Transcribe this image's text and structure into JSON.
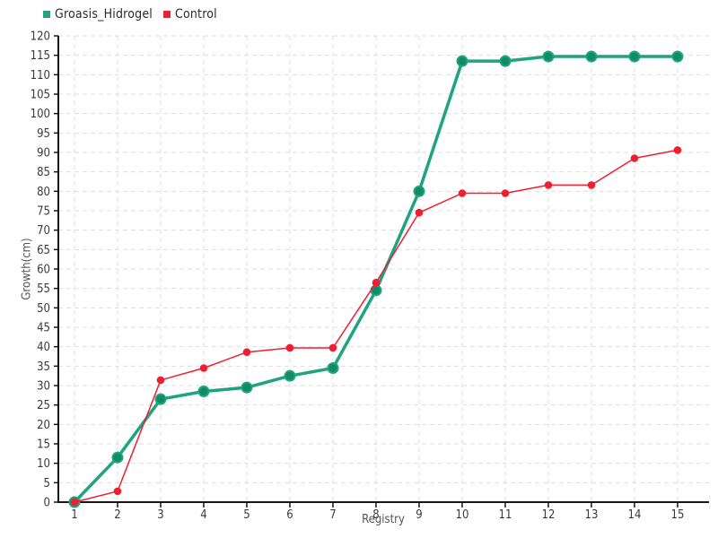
{
  "chart_data": {
    "type": "line",
    "title": "",
    "xlabel": "Registry",
    "ylabel": "Growth(cm)",
    "x": [
      1,
      2,
      3,
      4,
      5,
      6,
      7,
      8,
      9,
      10,
      11,
      12,
      13,
      14,
      15
    ],
    "xlim": [
      0.625,
      15.73
    ],
    "ylim": [
      0,
      120
    ],
    "ytick_step": 5,
    "grid": true,
    "legend_position": "top-left",
    "series": [
      {
        "name": "Groasis_Hidrogel",
        "color": "#1ea47e",
        "marker_fill": "#128a65",
        "values": [
          0,
          11.5,
          26.5,
          28.5,
          29.5,
          32.5,
          34.5,
          54.5,
          80,
          113.5,
          113.5,
          114.7,
          114.7,
          114.7,
          114.7
        ]
      },
      {
        "name": "Control",
        "color": "#ee1f31",
        "marker_fill": "#ee1f31",
        "values": [
          0,
          2.8,
          31.4,
          34.5,
          38.6,
          39.7,
          39.7,
          56.5,
          74.5,
          79.5,
          79.5,
          81.6,
          81.6,
          88.5,
          90.6
        ]
      }
    ],
    "colors": {
      "grid": "#dedede",
      "axis": "#161616",
      "tick_text": "#3a3a3a"
    }
  }
}
